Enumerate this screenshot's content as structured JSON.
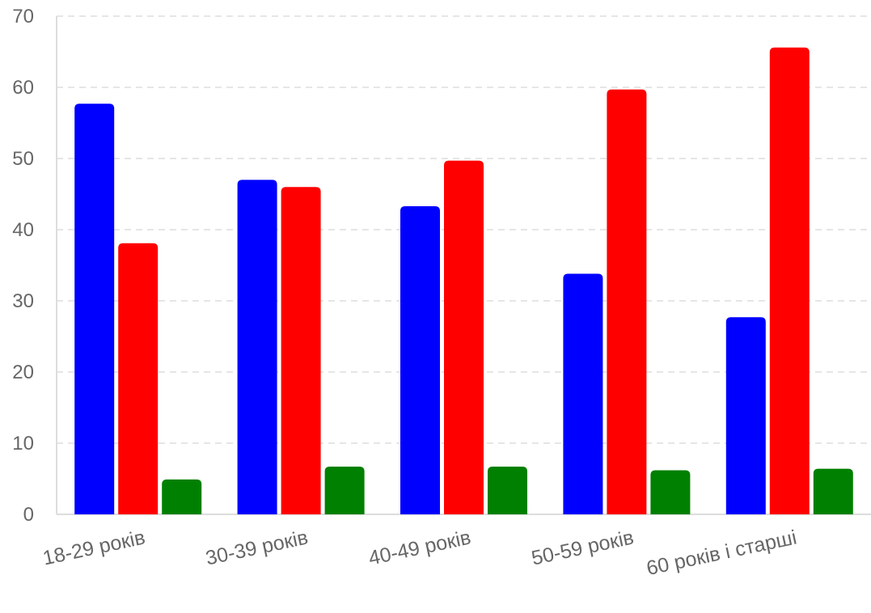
{
  "chart_data": {
    "type": "bar",
    "title": "",
    "xlabel": "",
    "ylabel": "",
    "categories": [
      "18-29 років",
      "30-39 років",
      "40-49 років",
      "50-59 років",
      "60 років і старші"
    ],
    "series": [
      {
        "color": "#0000ff",
        "values": [
          57.7,
          47.0,
          43.3,
          33.8,
          27.7
        ]
      },
      {
        "color": "#ff0000",
        "values": [
          38.1,
          46.0,
          49.7,
          59.7,
          65.6
        ]
      },
      {
        "color": "#008000",
        "values": [
          4.9,
          6.7,
          6.7,
          6.2,
          6.4
        ]
      }
    ],
    "yticks": [
      "0",
      "10",
      "20",
      "30",
      "40",
      "50",
      "60",
      "70"
    ],
    "ylim": [
      0,
      70
    ],
    "grid": true,
    "grid_style": "dashed",
    "legend": "none"
  }
}
